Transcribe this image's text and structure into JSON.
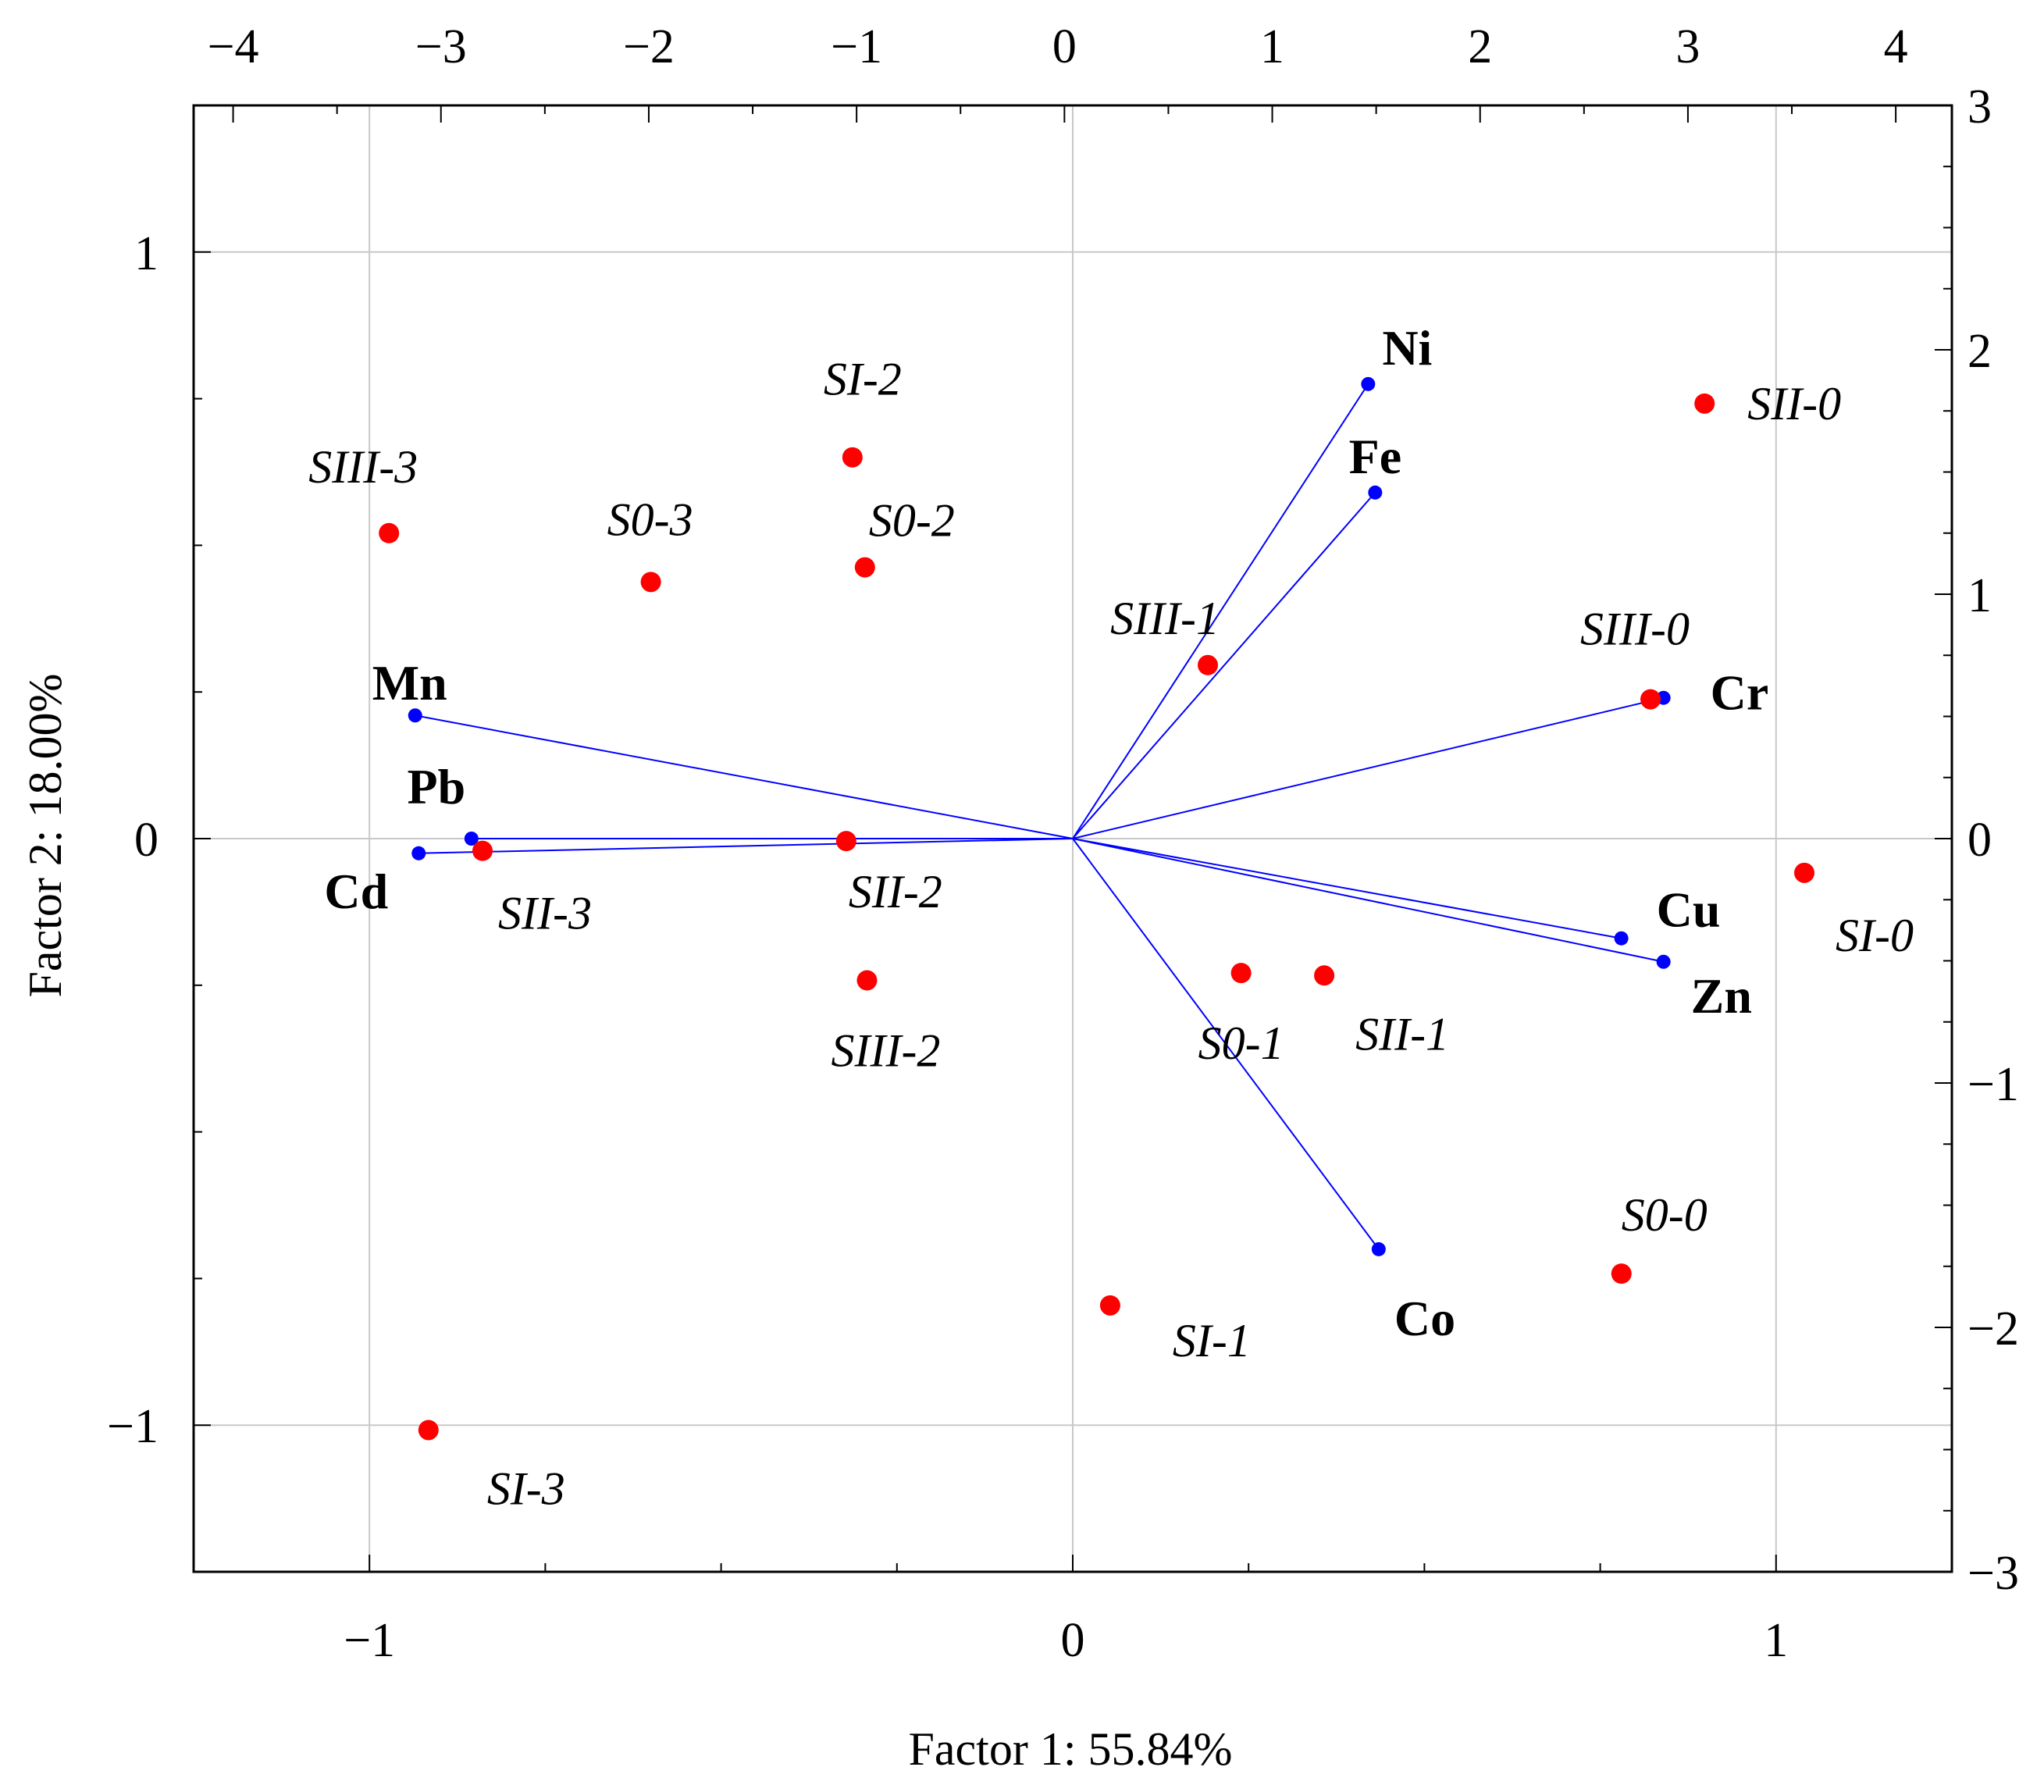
{
  "chart_data": {
    "type": "scatter",
    "subtype": "pca-biplot",
    "xlabel": "Factor 1: 55.84%",
    "ylabel": "Factor 2: 18.00%",
    "loadings_axes": {
      "xlim": [
        -1.25,
        1.25
      ],
      "ylim": [
        -1.25,
        1.25
      ],
      "xticks": [
        -1,
        0,
        1
      ],
      "yticks": [
        -1,
        0,
        1
      ]
    },
    "scores_axes": {
      "xlim": [
        -4.19,
        4.27
      ],
      "ylim": [
        -3,
        3
      ],
      "xticks": [
        -4,
        -3,
        -2,
        -1,
        0,
        1,
        2,
        3,
        4
      ],
      "yticks": [
        -3,
        -2,
        -1,
        0,
        1,
        2,
        3
      ]
    },
    "gridlines": {
      "x": [
        -1,
        0,
        1
      ],
      "y": [
        -1,
        0,
        1
      ]
    },
    "colors": {
      "variables": "#0000ff",
      "observations": "#ff0000",
      "grid": "#c8c8c8",
      "frame": "#000000"
    },
    "variables": [
      {
        "name": "Ni",
        "x": 0.42,
        "y": 0.775
      },
      {
        "name": "Fe",
        "x": 0.43,
        "y": 0.59
      },
      {
        "name": "Cr",
        "x": 0.84,
        "y": 0.24
      },
      {
        "name": "Mn",
        "x": -0.935,
        "y": 0.21
      },
      {
        "name": "Pb",
        "x": -0.855,
        "y": 0.0
      },
      {
        "name": "Cd",
        "x": -0.93,
        "y": -0.025
      },
      {
        "name": "Cu",
        "x": 0.78,
        "y": -0.17
      },
      {
        "name": "Zn",
        "x": 0.84,
        "y": -0.21
      },
      {
        "name": "Co",
        "x": 0.435,
        "y": -0.7
      }
    ],
    "observations": [
      {
        "label": "SII-0",
        "x": 3.08,
        "y": 1.78
      },
      {
        "label": "SI-0",
        "x": 3.56,
        "y": -0.14
      },
      {
        "label": "SIII-0",
        "x": 2.82,
        "y": 0.57
      },
      {
        "label": "S0-0",
        "x": 2.68,
        "y": -1.78
      },
      {
        "label": "SIII-1",
        "x": 0.69,
        "y": 0.71
      },
      {
        "label": "S0-1",
        "x": 0.85,
        "y": -0.55
      },
      {
        "label": "SII-1",
        "x": 1.25,
        "y": -0.56
      },
      {
        "label": "SI-1",
        "x": 0.22,
        "y": -1.91
      },
      {
        "label": "SI-2",
        "x": -1.02,
        "y": 1.56
      },
      {
        "label": "S0-2",
        "x": -0.96,
        "y": 1.11
      },
      {
        "label": "SII-2",
        "x": -1.05,
        "y": -0.01
      },
      {
        "label": "SIII-2",
        "x": -0.95,
        "y": -0.58
      },
      {
        "label": "S0-3",
        "x": -1.99,
        "y": 1.05
      },
      {
        "label": "SIII-3",
        "x": -3.25,
        "y": 1.25
      },
      {
        "label": "SII-3",
        "x": -2.8,
        "y": -0.05
      },
      {
        "label": "SI-3",
        "x": -3.06,
        "y": -2.42
      }
    ]
  }
}
